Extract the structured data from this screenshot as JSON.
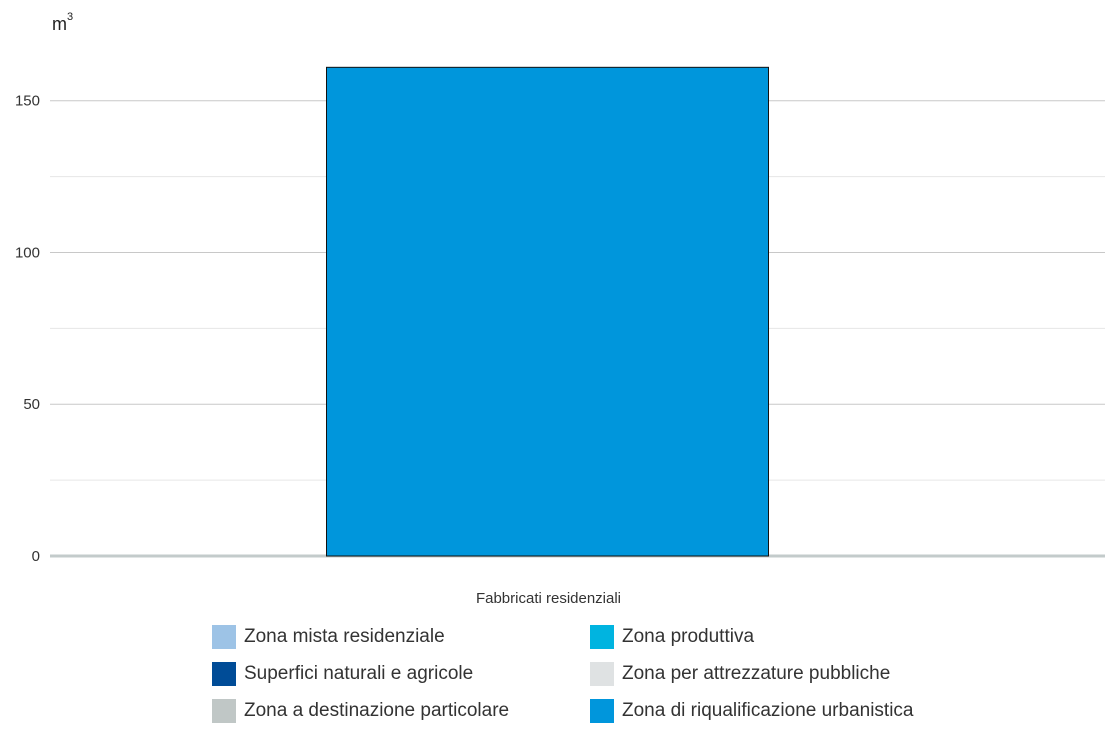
{
  "chart_data": {
    "type": "bar",
    "unit": {
      "base": "m",
      "exponent": "3"
    },
    "categories": [
      "Fabbricati residenziali"
    ],
    "series": [
      {
        "name": "Zona mista residenziale",
        "color": "#9dc3e6",
        "values": [
          0
        ]
      },
      {
        "name": "Zona produttiva",
        "color": "#00b4e0",
        "values": [
          0
        ]
      },
      {
        "name": "Superfici naturali e agricole",
        "color": "#004c97",
        "values": [
          0
        ]
      },
      {
        "name": "Zona per attrezzature pubbliche",
        "color": "#dfe2e3",
        "values": [
          0
        ]
      },
      {
        "name": "Zona a destinazione particolare",
        "color": "#c0c7c6",
        "values": [
          0
        ]
      },
      {
        "name": "Zona di riqualificazione urbanistica",
        "color": "#0096dc",
        "values": [
          161
        ]
      }
    ],
    "ylim": [
      0,
      170
    ],
    "yticks": [
      0,
      50,
      100,
      150
    ],
    "minor_grid_step": 25,
    "grid": true,
    "legend_position": "bottom"
  }
}
